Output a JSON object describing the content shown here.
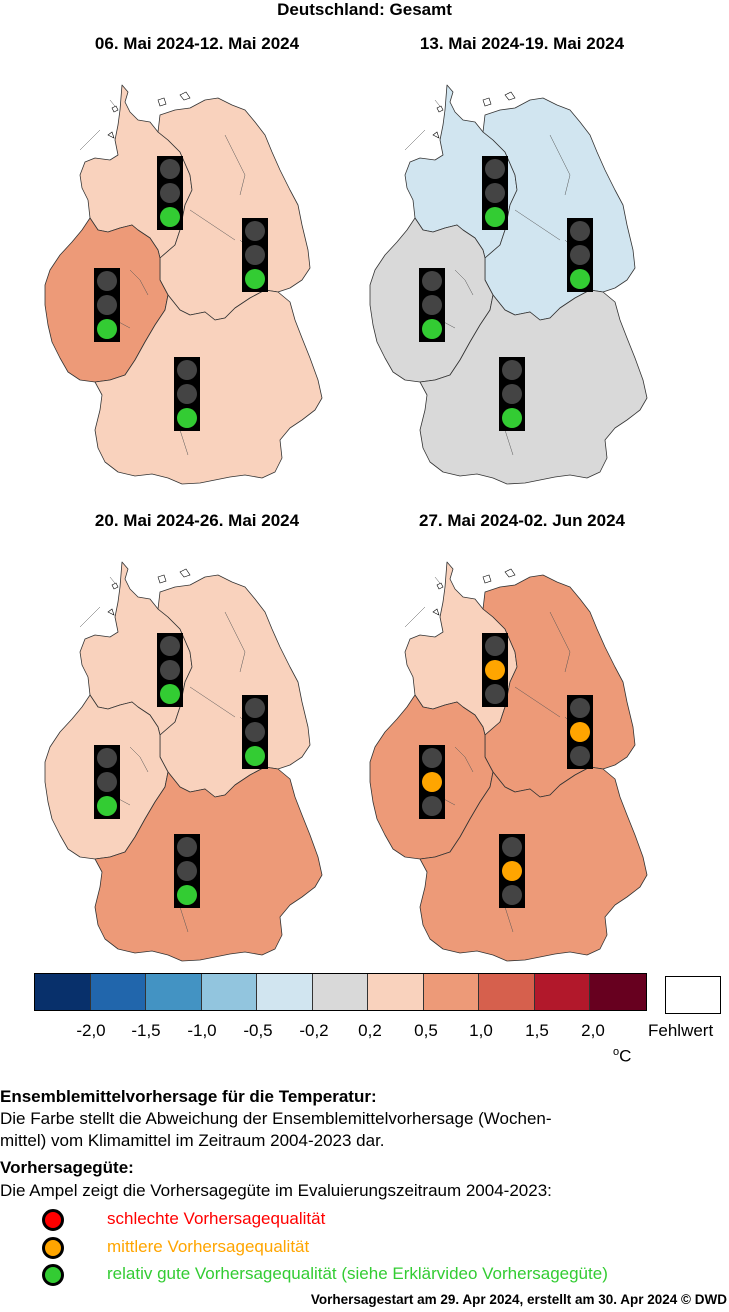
{
  "title": "Deutschland: Gesamt",
  "colors": {
    "scale": [
      "#08306b",
      "#2166ac",
      "#4393c3",
      "#92c5de",
      "#d1e5f0",
      "#d9d9d9",
      "#f9d2bd",
      "#ed9a78",
      "#d6604d",
      "#b2182b",
      "#67001f"
    ],
    "traffic_off": "#444444",
    "traffic_red": "#ff0000",
    "traffic_orange": "#ffa500",
    "traffic_green": "#33cc33"
  },
  "panels": [
    {
      "title": "06. Mai 2024-12. Mai 2024",
      "regions": [
        {
          "name": "Nordwest",
          "anomaly_color": "#f9d2bd",
          "quality": "green"
        },
        {
          "name": "Nordost",
          "anomaly_color": "#f9d2bd",
          "quality": "green"
        },
        {
          "name": "West",
          "anomaly_color": "#ed9a78",
          "quality": "green"
        },
        {
          "name": "Süd",
          "anomaly_color": "#f9d2bd",
          "quality": "green"
        }
      ]
    },
    {
      "title": "13. Mai 2024-19. Mai 2024",
      "regions": [
        {
          "name": "Nordwest",
          "anomaly_color": "#d1e5f0",
          "quality": "green"
        },
        {
          "name": "Nordost",
          "anomaly_color": "#d1e5f0",
          "quality": "green"
        },
        {
          "name": "West",
          "anomaly_color": "#d9d9d9",
          "quality": "green"
        },
        {
          "name": "Süd",
          "anomaly_color": "#d9d9d9",
          "quality": "green"
        }
      ]
    },
    {
      "title": "20. Mai 2024-26. Mai 2024",
      "regions": [
        {
          "name": "Nordwest",
          "anomaly_color": "#f9d2bd",
          "quality": "green"
        },
        {
          "name": "Nordost",
          "anomaly_color": "#f9d2bd",
          "quality": "green"
        },
        {
          "name": "West",
          "anomaly_color": "#f9d2bd",
          "quality": "green"
        },
        {
          "name": "Süd",
          "anomaly_color": "#ed9a78",
          "quality": "green"
        }
      ]
    },
    {
      "title": "27. Mai 2024-02. Jun 2024",
      "regions": [
        {
          "name": "Nordwest",
          "anomaly_color": "#f9d2bd",
          "quality": "orange"
        },
        {
          "name": "Nordost",
          "anomaly_color": "#ed9a78",
          "quality": "orange"
        },
        {
          "name": "West",
          "anomaly_color": "#ed9a78",
          "quality": "orange"
        },
        {
          "name": "Süd",
          "anomaly_color": "#ed9a78",
          "quality": "orange"
        }
      ]
    }
  ],
  "colorbar": {
    "tick_labels": [
      "-2,0",
      "-1,5",
      "-1,0",
      "-0,5",
      "-0,2",
      "0,2",
      "0,5",
      "1,0",
      "1,5",
      "2,0"
    ],
    "unit": "C",
    "unit_sup": "o",
    "missing_label": "Fehlwert"
  },
  "legend": {
    "heading1": "Ensemblemittelvorhersage für die Temperatur:",
    "text1_line1": "Die Farbe stellt die Abweichung der Ensemblemittelvorhersage (Wochen-",
    "text1_line2": "mittel) vom Klimamittel im Zeitraum 2004-2023 dar.",
    "heading2": "Vorhersagegüte:",
    "text2": "Die Ampel zeigt die Vorhersagegüte im Evaluierungszeitraum 2004-2023:",
    "quality": [
      {
        "label": "schlechte Vorhersagequalität",
        "color": "#ff0000"
      },
      {
        "label": "mittlere Vorhersagequalität",
        "color": "#ffa500"
      },
      {
        "label": "relativ gute Vorhersagequalität (siehe Erklärvideo Vorhersagegüte)",
        "color": "#33cc33"
      }
    ]
  },
  "footer": "Vorhersagestart am 29. Apr 2024, erstellt am 30. Apr 2024 © DWD"
}
